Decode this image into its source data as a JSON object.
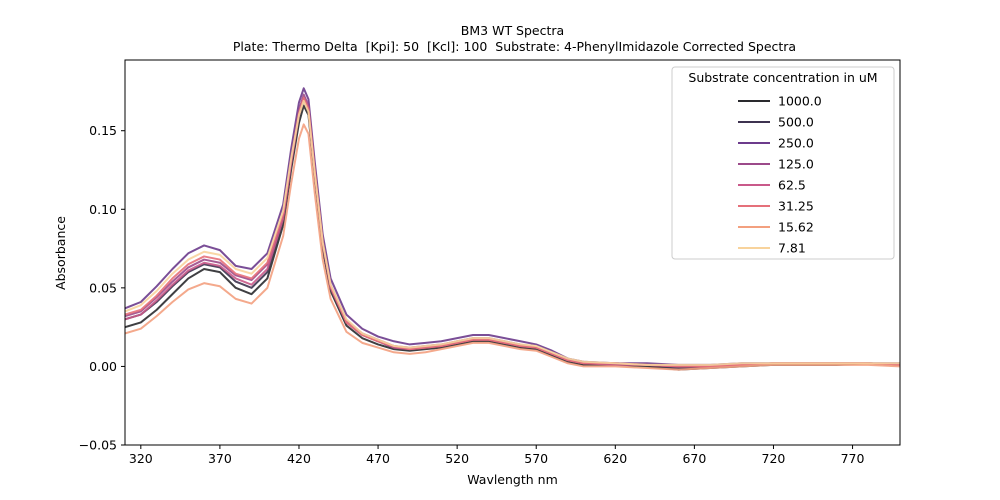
{
  "chart_data": {
    "type": "line",
    "title": "BM3 WT Spectra",
    "subtitle": " Plate: Thermo Delta  [Kpi]: 50  [Kcl]: 100  Substrate: 4-PhenylImidazole Corrected Spectra",
    "xlabel": "Wavlength nm",
    "ylabel": "Absorbance",
    "xlim": [
      310,
      800
    ],
    "ylim": [
      -0.05,
      0.195
    ],
    "xticks": [
      320,
      370,
      420,
      470,
      520,
      570,
      620,
      670,
      720,
      770
    ],
    "yticks": [
      -0.05,
      0.0,
      0.05,
      0.1,
      0.15
    ],
    "ytick_labels": [
      "−0.05",
      "0.00",
      "0.05",
      "0.10",
      "0.15"
    ],
    "grid": false,
    "legend": {
      "title": "Substrate concentration in uM",
      "position": "top-right"
    },
    "x": [
      310,
      320,
      330,
      340,
      350,
      360,
      370,
      380,
      390,
      400,
      410,
      415,
      420,
      423,
      426,
      430,
      435,
      440,
      450,
      460,
      470,
      480,
      490,
      500,
      510,
      520,
      530,
      540,
      550,
      560,
      570,
      580,
      590,
      600,
      620,
      640,
      660,
      680,
      700,
      720,
      740,
      760,
      780,
      800
    ],
    "series": [
      {
        "name": "1000.0",
        "color": "#2a2a2e",
        "values": [
          0.025,
          0.028,
          0.036,
          0.046,
          0.056,
          0.062,
          0.06,
          0.05,
          0.046,
          0.056,
          0.09,
          0.125,
          0.155,
          0.166,
          0.16,
          0.12,
          0.075,
          0.048,
          0.026,
          0.018,
          0.014,
          0.011,
          0.01,
          0.011,
          0.012,
          0.014,
          0.016,
          0.016,
          0.014,
          0.012,
          0.011,
          0.007,
          0.003,
          0.001,
          0.001,
          0.0,
          -0.002,
          -0.001,
          0.0,
          0.001,
          0.001,
          0.001,
          0.002,
          0.001
        ]
      },
      {
        "name": "500.0",
        "color": "#3e3350",
        "values": [
          0.03,
          0.033,
          0.041,
          0.051,
          0.06,
          0.065,
          0.063,
          0.054,
          0.05,
          0.06,
          0.094,
          0.129,
          0.16,
          0.171,
          0.164,
          0.124,
          0.079,
          0.051,
          0.028,
          0.02,
          0.016,
          0.012,
          0.011,
          0.012,
          0.013,
          0.015,
          0.017,
          0.017,
          0.015,
          0.013,
          0.012,
          0.008,
          0.004,
          0.002,
          0.002,
          0.001,
          -0.001,
          0.0,
          0.001,
          0.002,
          0.002,
          0.002,
          0.002,
          0.001
        ]
      },
      {
        "name": "250.0",
        "color": "#6c3b8c",
        "values": [
          0.037,
          0.041,
          0.051,
          0.062,
          0.072,
          0.077,
          0.074,
          0.064,
          0.062,
          0.072,
          0.103,
          0.138,
          0.168,
          0.177,
          0.17,
          0.13,
          0.084,
          0.056,
          0.033,
          0.024,
          0.019,
          0.016,
          0.014,
          0.015,
          0.016,
          0.018,
          0.02,
          0.02,
          0.018,
          0.016,
          0.014,
          0.01,
          0.005,
          0.003,
          0.002,
          0.002,
          0.001,
          0.001,
          0.002,
          0.002,
          0.002,
          0.002,
          0.002,
          0.002
        ]
      },
      {
        "name": "125.0",
        "color": "#9c4a8a",
        "values": [
          0.032,
          0.035,
          0.044,
          0.054,
          0.063,
          0.068,
          0.066,
          0.058,
          0.055,
          0.065,
          0.097,
          0.132,
          0.163,
          0.173,
          0.166,
          0.126,
          0.08,
          0.052,
          0.029,
          0.021,
          0.017,
          0.013,
          0.012,
          0.013,
          0.014,
          0.016,
          0.018,
          0.018,
          0.016,
          0.014,
          0.012,
          0.008,
          0.004,
          0.002,
          0.002,
          0.001,
          0.0,
          0.0,
          0.001,
          0.002,
          0.002,
          0.002,
          0.002,
          0.001
        ]
      },
      {
        "name": "62.5",
        "color": "#c9598a",
        "values": [
          0.03,
          0.033,
          0.042,
          0.052,
          0.061,
          0.066,
          0.064,
          0.056,
          0.052,
          0.062,
          0.094,
          0.129,
          0.16,
          0.17,
          0.163,
          0.123,
          0.078,
          0.05,
          0.028,
          0.02,
          0.016,
          0.012,
          0.011,
          0.012,
          0.013,
          0.015,
          0.017,
          0.017,
          0.015,
          0.013,
          0.012,
          0.008,
          0.004,
          0.002,
          0.001,
          0.001,
          0.0,
          0.0,
          0.001,
          0.002,
          0.002,
          0.002,
          0.002,
          0.001
        ]
      },
      {
        "name": "31.25",
        "color": "#e5707a",
        "values": [
          0.033,
          0.036,
          0.045,
          0.056,
          0.065,
          0.07,
          0.068,
          0.059,
          0.056,
          0.066,
          0.097,
          0.131,
          0.161,
          0.171,
          0.164,
          0.124,
          0.079,
          0.051,
          0.028,
          0.02,
          0.016,
          0.013,
          0.011,
          0.012,
          0.013,
          0.015,
          0.017,
          0.017,
          0.015,
          0.013,
          0.012,
          0.008,
          0.004,
          0.002,
          0.002,
          0.001,
          0.0,
          0.0,
          0.001,
          0.002,
          0.002,
          0.002,
          0.002,
          0.001
        ]
      },
      {
        "name": "15.62",
        "color": "#f3a07f",
        "values": [
          0.021,
          0.024,
          0.032,
          0.041,
          0.049,
          0.053,
          0.051,
          0.043,
          0.04,
          0.05,
          0.083,
          0.116,
          0.145,
          0.154,
          0.148,
          0.11,
          0.068,
          0.043,
          0.022,
          0.015,
          0.012,
          0.009,
          0.008,
          0.009,
          0.011,
          0.013,
          0.015,
          0.015,
          0.013,
          0.011,
          0.01,
          0.006,
          0.002,
          0.0,
          0.0,
          -0.001,
          -0.002,
          -0.001,
          0.0,
          0.001,
          0.001,
          0.001,
          0.001,
          0.0
        ]
      },
      {
        "name": "7.81",
        "color": "#f8d39c",
        "values": [
          0.035,
          0.039,
          0.048,
          0.059,
          0.068,
          0.073,
          0.071,
          0.062,
          0.059,
          0.069,
          0.099,
          0.132,
          0.16,
          0.169,
          0.162,
          0.123,
          0.079,
          0.052,
          0.03,
          0.021,
          0.017,
          0.013,
          0.012,
          0.013,
          0.014,
          0.016,
          0.018,
          0.018,
          0.016,
          0.014,
          0.013,
          0.009,
          0.005,
          0.003,
          0.002,
          0.001,
          0.001,
          0.001,
          0.002,
          0.002,
          0.002,
          0.002,
          0.002,
          0.002
        ]
      }
    ]
  }
}
